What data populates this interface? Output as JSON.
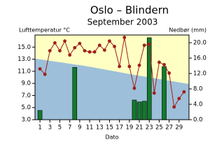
{
  "chart_data": {
    "type": "bar-line",
    "title": "Oslo – Blindern",
    "subtitle": "September 2003",
    "ylabel": "Lufttemperatur °C",
    "y2label": "Nedbør (mm)",
    "xlabel": "Dato",
    "x": [
      1,
      2,
      3,
      4,
      5,
      6,
      7,
      8,
      9,
      10,
      11,
      12,
      13,
      14,
      15,
      16,
      17,
      18,
      19,
      20,
      21,
      22,
      23,
      24,
      25,
      26,
      27,
      28,
      29,
      30
    ],
    "xlim": [
      0,
      31
    ],
    "xticks": [
      1,
      3,
      5,
      7,
      9,
      11,
      13,
      15,
      17,
      19,
      21,
      23,
      25,
      27,
      29
    ],
    "ylim": [
      3,
      17
    ],
    "yticks": [
      {
        "value": 3,
        "label": "3.0"
      },
      {
        "value": 5,
        "label": "5.0"
      },
      {
        "value": 7,
        "label": "7.0"
      },
      {
        "value": 9,
        "label": "9.0"
      },
      {
        "value": 11,
        "label": "11.0"
      },
      {
        "value": 13,
        "label": "13.0"
      },
      {
        "value": 15,
        "label": "15.0"
      }
    ],
    "y2lim": [
      0,
      22
    ],
    "y2ticks": [
      {
        "value": 0,
        "label": "0.0"
      },
      {
        "value": 4,
        "label": "4.0"
      },
      {
        "value": 8,
        "label": "8.0"
      },
      {
        "value": 12,
        "label": "12.0"
      },
      {
        "value": 16,
        "label": "16.0"
      },
      {
        "value": 20,
        "label": "20.0"
      }
    ],
    "normal": {
      "x": [
        0,
        10,
        20,
        31
      ],
      "values": [
        13.1,
        11.9,
        10.4,
        8.9
      ],
      "color": "#9dbfd9",
      "above_color": "#ffffc4"
    },
    "series": [
      {
        "type": "bar",
        "axis": "y2",
        "color": "#137a2c",
        "values": [
          2.4,
          0,
          0,
          0,
          0,
          0,
          0,
          13.6,
          0,
          0,
          0,
          0,
          0,
          0,
          0,
          0,
          0,
          0,
          0,
          5.1,
          4.6,
          4.8,
          21.3,
          0,
          0,
          13.8,
          0,
          0,
          0,
          0
        ]
      },
      {
        "type": "line",
        "axis": "y",
        "color": "#a0201a",
        "values": [
          11.4,
          10.5,
          14.4,
          15.7,
          14.4,
          16.0,
          13.7,
          14.9,
          15.6,
          14.4,
          14.2,
          14.2,
          15.3,
          14.5,
          16.0,
          15.1,
          11.8,
          16.6,
          11.8,
          8.2,
          12.0,
          15.3,
          15.5,
          7.4,
          12.5,
          12.1,
          10.7,
          5.1,
          6.5,
          7.6
        ]
      }
    ]
  }
}
